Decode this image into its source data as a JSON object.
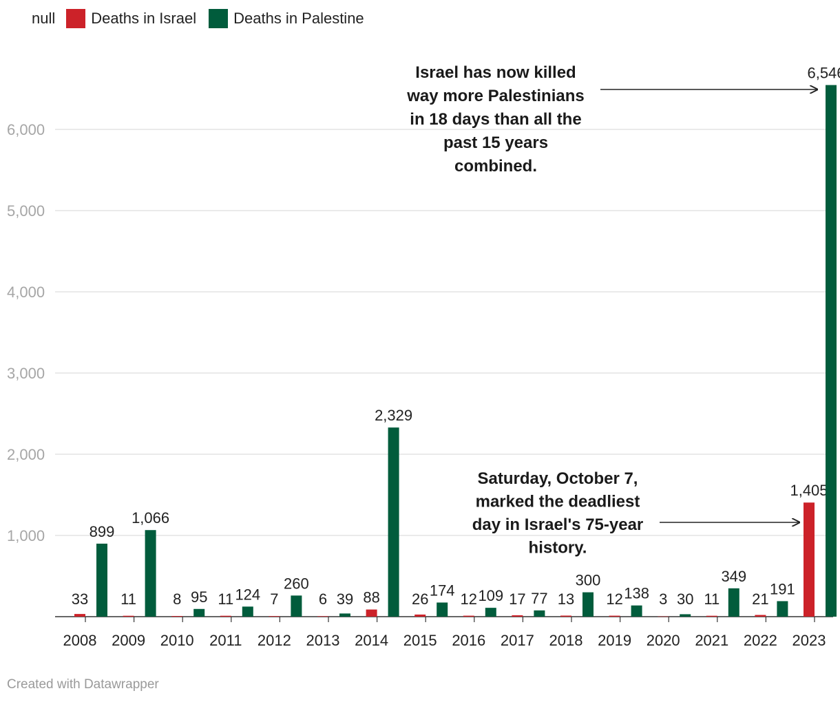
{
  "legend": {
    "null_label": "null",
    "items": [
      {
        "label": "Deaths in Israel",
        "color": "#cc2229"
      },
      {
        "label": "Deaths in Palestine",
        "color": "#015c3c"
      }
    ]
  },
  "footer": {
    "credit": "Created with Datawrapper"
  },
  "chart_data": {
    "type": "bar",
    "categories": [
      "2008",
      "2009",
      "2010",
      "2011",
      "2012",
      "2013",
      "2014",
      "2015",
      "2016",
      "2017",
      "2018",
      "2019",
      "2020",
      "2021",
      "2022",
      "2023"
    ],
    "series": [
      {
        "name": "Deaths in Israel",
        "color": "#cc2229",
        "values": [
          33,
          11,
          8,
          11,
          7,
          6,
          88,
          26,
          12,
          17,
          13,
          12,
          3,
          11,
          21,
          1405
        ]
      },
      {
        "name": "Deaths in Palestine",
        "color": "#015c3c",
        "values": [
          899,
          1066,
          95,
          124,
          260,
          39,
          2329,
          174,
          109,
          77,
          300,
          138,
          30,
          349,
          191,
          6546
        ]
      }
    ],
    "ylim": [
      0,
      6546
    ],
    "yticks": [
      1000,
      2000,
      3000,
      4000,
      5000,
      6000
    ],
    "ytick_labels": [
      "1,000",
      "2,000",
      "3,000",
      "4,000",
      "5,000",
      "6,000"
    ],
    "grid": true,
    "annotations": [
      {
        "lines": [
          "Israel has now killed",
          "way more Palestinians",
          "in 18 days than all the",
          "past 15 years",
          "combined."
        ],
        "target_category": "2023",
        "target_series": 1
      },
      {
        "lines": [
          "Saturday, October 7,",
          "marked the deadliest",
          "day in Israel's 75-year",
          "history."
        ],
        "target_category": "2023",
        "target_series": 0
      }
    ]
  }
}
